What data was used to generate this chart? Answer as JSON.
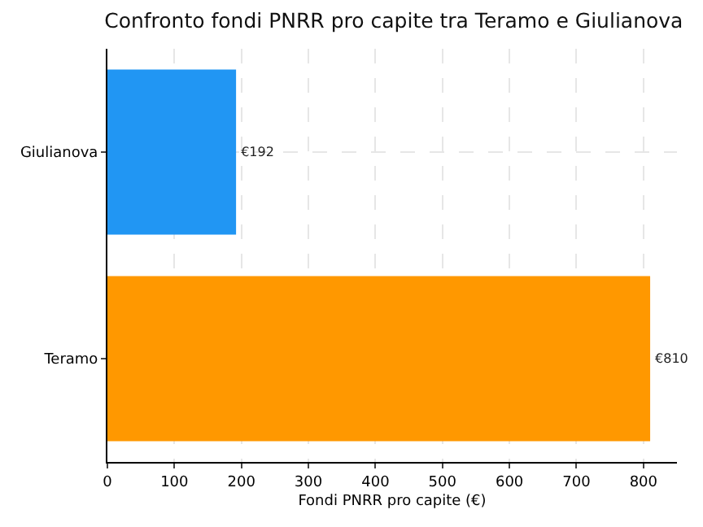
{
  "chart_data": {
    "type": "bar",
    "orientation": "horizontal",
    "title": "Confronto fondi PNRR pro capite tra Teramo e Giulianova",
    "xlabel": "Fondi PNRR pro capite (€)",
    "categories": [
      "Giulianova",
      "Teramo"
    ],
    "values": [
      192,
      810
    ],
    "colors": [
      "#2196f3",
      "#ff9800"
    ],
    "value_labels": [
      "€192",
      "€810"
    ],
    "xlim": [
      0,
      850
    ],
    "xticks": [
      0,
      100,
      200,
      300,
      400,
      500,
      600,
      700,
      800
    ],
    "grid": true
  }
}
